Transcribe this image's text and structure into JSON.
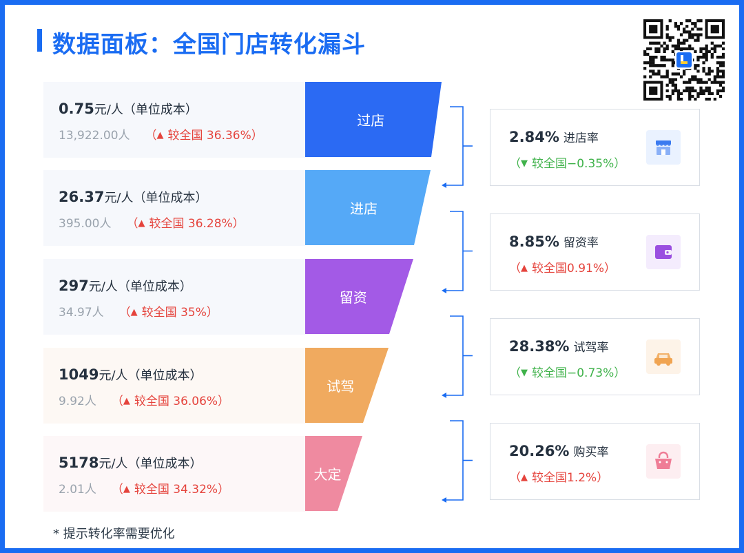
{
  "header": {
    "title": "数据面板：全国门店转化漏斗"
  },
  "stages": [
    {
      "stage": "过店",
      "cost_value": "0.75",
      "cost_unit": "元/人（单位成本）",
      "count": "13,922.00人",
      "compare": "较全国 36.36%",
      "trend": "up",
      "color": "#2b6af3"
    },
    {
      "stage": "进店",
      "cost_value": "26.37",
      "cost_unit": "元/人（单位成本）",
      "count": "395.00人",
      "compare": "较全国 36.28%",
      "trend": "up",
      "color": "#55a9f7"
    },
    {
      "stage": "留资",
      "cost_value": "297",
      "cost_unit": "元/人（单位成本）",
      "count": "34.97人",
      "compare": "较全国 35%",
      "trend": "up",
      "color": "#a35ae6"
    },
    {
      "stage": "试驾",
      "cost_value": "1049",
      "cost_unit": "元/人（单位成本）",
      "count": "9.92人",
      "compare": "较全国 36.06%",
      "trend": "up",
      "color": "#f0aa5f"
    },
    {
      "stage": "大定",
      "cost_value": "5178",
      "cost_unit": "元/人（单位成本）",
      "count": "2.01人",
      "compare": "较全国 34.32%",
      "trend": "up",
      "color": "#ef8aa0"
    }
  ],
  "rates": [
    {
      "pct": "2.84%",
      "label": "进店率",
      "compare": "较全国−0.35%",
      "trend": "down",
      "icon": "store-icon",
      "icon_color": "#3a7af0",
      "icon_bg": "#eaf2ff"
    },
    {
      "pct": "8.85%",
      "label": "留资率",
      "compare": "较全国0.91%",
      "trend": "up",
      "icon": "wallet-icon",
      "icon_color": "#9a4fe0",
      "icon_bg": "#f4ecfd"
    },
    {
      "pct": "28.38%",
      "label": "试驾率",
      "compare": "较全国−0.73%",
      "trend": "down",
      "icon": "car-icon",
      "icon_color": "#f0a452",
      "icon_bg": "#fdf3e8"
    },
    {
      "pct": "20.26%",
      "label": "购买率",
      "compare": "较全国1.2%",
      "trend": "up",
      "icon": "shopping-bag-icon",
      "icon_color": "#ef7d96",
      "icon_bg": "#fdeef1"
    }
  ],
  "footnote": "* 提示转化率需要优化",
  "colors": {
    "brand": "#1a6cf2",
    "up": "#e5433c",
    "down": "#3fb24a"
  },
  "triangles": {
    "up": "▲",
    "down": "▼"
  },
  "qr_icon": "qr-code-icon"
}
